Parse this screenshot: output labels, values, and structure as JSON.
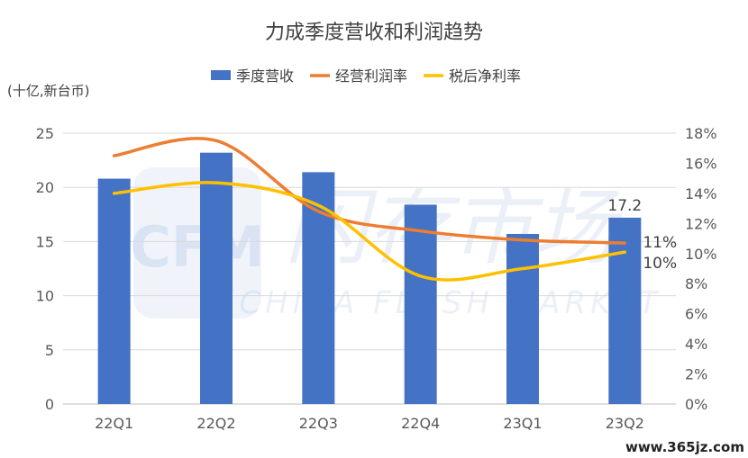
{
  "chart_data": {
    "type": "bar",
    "title": "力成季度营收和利润趋势",
    "y_unit_label": "(十亿,新台币)",
    "categories": [
      "22Q1",
      "22Q2",
      "22Q3",
      "22Q4",
      "23Q1",
      "23Q2"
    ],
    "y_left": {
      "min": 0,
      "max": 25,
      "step": 5
    },
    "y_right": {
      "min": 0,
      "max": 18,
      "step": 2,
      "suffix": "%"
    },
    "legend_position": "top-center",
    "grid": true,
    "series": [
      {
        "name": "季度营收",
        "kind": "bar",
        "axis": "left",
        "color": "#4472C4",
        "values": [
          20.8,
          23.2,
          21.4,
          18.4,
          15.7,
          17.2
        ]
      },
      {
        "name": "经营利润率",
        "kind": "line",
        "axis": "right",
        "color": "#ED7D31",
        "values": [
          16.5,
          17.5,
          12.8,
          11.5,
          10.9,
          10.7
        ]
      },
      {
        "name": "税后净利率",
        "kind": "line",
        "axis": "right",
        "color": "#FFC000",
        "values": [
          14.0,
          14.7,
          13.2,
          8.5,
          9.0,
          10.1
        ]
      }
    ],
    "annotations": [
      {
        "text": "17.2",
        "series": "季度营收",
        "category": "23Q2"
      },
      {
        "text": "11%",
        "series": "经营利润率",
        "category": "23Q2"
      },
      {
        "text": "10%",
        "series": "税后净利率",
        "category": "23Q2"
      }
    ]
  },
  "watermark": {
    "logo_text": "CFM",
    "cn_text": "闪存市场",
    "en_text": "CHINA FLASH MARKET"
  },
  "source_stamp": "www.365jz.com"
}
